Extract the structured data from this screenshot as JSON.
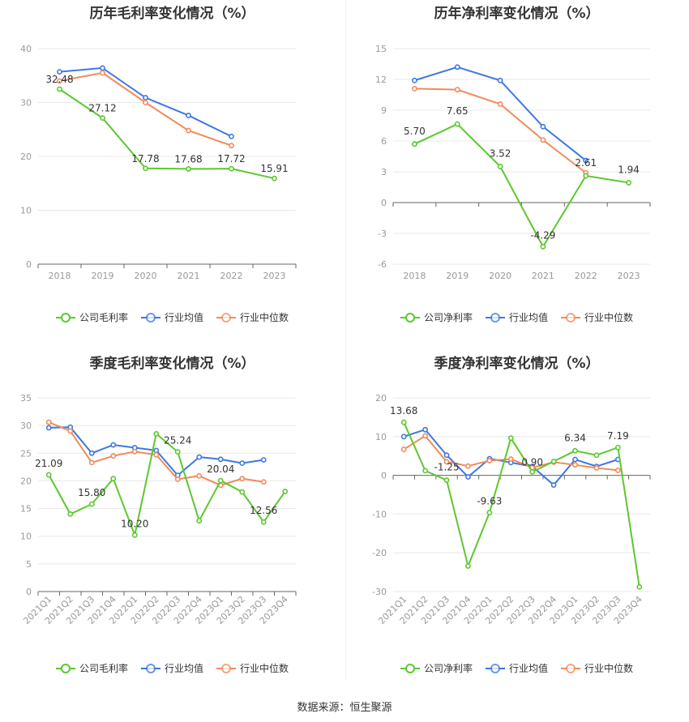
{
  "colors": {
    "company": "#5cc82e",
    "industry_avg": "#3f78e0",
    "industry_median": "#f08b5c",
    "grid": "#e8e8e8",
    "axis": "#666666",
    "label": "#999999"
  },
  "footer": "数据来源：恒生聚源",
  "chart_data": [
    {
      "type": "line",
      "title": "历年毛利率变化情况（%）",
      "categories": [
        "2018",
        "2019",
        "2020",
        "2021",
        "2022",
        "2023"
      ],
      "ylim": [
        0,
        40
      ],
      "yticks": [
        0,
        10,
        20,
        30,
        40
      ],
      "series": [
        {
          "name": "公司毛利率",
          "values": [
            32.48,
            27.12,
            17.78,
            17.68,
            17.72,
            15.91
          ],
          "labels": [
            "32.48",
            "27.12",
            "17.78",
            "17.68",
            "17.72",
            "15.91"
          ]
        },
        {
          "name": "行业均值",
          "values": [
            35.7,
            36.4,
            30.9,
            27.6,
            23.7,
            null
          ]
        },
        {
          "name": "行业中位数",
          "values": [
            34.0,
            35.5,
            30.0,
            24.8,
            22.0,
            null
          ]
        }
      ]
    },
    {
      "type": "line",
      "title": "历年净利率变化情况（%）",
      "categories": [
        "2018",
        "2019",
        "2020",
        "2021",
        "2022",
        "2023"
      ],
      "ylim": [
        -6,
        15
      ],
      "yticks": [
        -6,
        -3,
        0,
        3,
        6,
        9,
        12,
        15
      ],
      "series": [
        {
          "name": "公司净利率",
          "values": [
            5.7,
            7.65,
            3.52,
            -4.29,
            2.61,
            1.94
          ],
          "labels": [
            "5.70",
            "7.65",
            "3.52",
            "-4.29",
            "2.61",
            "1.94"
          ]
        },
        {
          "name": "行业均值",
          "values": [
            11.9,
            13.2,
            11.9,
            7.4,
            4.1,
            null
          ]
        },
        {
          "name": "行业中位数",
          "values": [
            11.1,
            11.0,
            9.6,
            6.1,
            2.9,
            null
          ]
        }
      ]
    },
    {
      "type": "line",
      "title": "季度毛利率变化情况（%）",
      "categories": [
        "2021Q1",
        "2021Q2",
        "2021Q3",
        "2021Q4",
        "2022Q1",
        "2022Q2",
        "2022Q3",
        "2022Q4",
        "2023Q1",
        "2023Q2",
        "2023Q3",
        "2023Q4"
      ],
      "ylim": [
        0,
        35
      ],
      "yticks": [
        0,
        5,
        10,
        15,
        20,
        25,
        30,
        35
      ],
      "series": [
        {
          "name": "公司毛利率",
          "values": [
            21.09,
            14.0,
            15.8,
            20.4,
            10.2,
            28.5,
            25.24,
            12.8,
            20.04,
            18.0,
            12.56,
            18.1
          ],
          "labels": [
            "21.09",
            "",
            "15.80",
            "",
            "10.20",
            "",
            "25.24",
            "",
            "20.04",
            "",
            "12.56",
            ""
          ]
        },
        {
          "name": "行业均值",
          "values": [
            29.6,
            29.7,
            25.0,
            26.5,
            26.0,
            25.5,
            21.0,
            24.3,
            23.9,
            23.2,
            23.8,
            null
          ]
        },
        {
          "name": "行业中位数",
          "values": [
            30.6,
            29.0,
            23.3,
            24.5,
            25.3,
            24.7,
            20.3,
            20.9,
            19.2,
            20.4,
            19.8,
            null
          ]
        }
      ]
    },
    {
      "type": "line",
      "title": "季度净利率变化情况（%）",
      "categories": [
        "2021Q1",
        "2021Q2",
        "2021Q3",
        "2021Q4",
        "2022Q1",
        "2022Q2",
        "2022Q3",
        "2022Q4",
        "2023Q1",
        "2023Q2",
        "2023Q3",
        "2023Q4"
      ],
      "ylim": [
        -30,
        20
      ],
      "yticks": [
        -30,
        -20,
        -10,
        0,
        10,
        20
      ],
      "series": [
        {
          "name": "公司净利率",
          "values": [
            13.68,
            1.2,
            -1.25,
            -23.4,
            -9.63,
            9.6,
            0.9,
            3.6,
            6.34,
            5.2,
            7.19,
            -28.8
          ],
          "labels": [
            "13.68",
            "",
            "-1.25",
            "",
            "-9.63",
            "",
            "0.90",
            "",
            "6.34",
            "",
            "7.19",
            ""
          ]
        },
        {
          "name": "行业均值",
          "values": [
            10.0,
            11.8,
            5.2,
            -0.4,
            4.3,
            3.3,
            2.3,
            -2.5,
            4.1,
            2.3,
            4.1,
            null
          ]
        },
        {
          "name": "行业中位数",
          "values": [
            6.7,
            10.2,
            3.5,
            2.4,
            3.8,
            4.2,
            2.0,
            3.4,
            2.7,
            1.9,
            1.3,
            null
          ]
        }
      ]
    }
  ]
}
